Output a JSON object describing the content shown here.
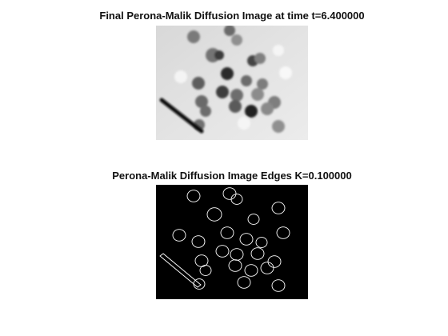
{
  "figure": {
    "top_title": "Final Perona-Malik Diffusion Image at time t=6.400000",
    "bottom_title": "Perona-Malik Diffusion Image Edges K=0.100000"
  }
}
